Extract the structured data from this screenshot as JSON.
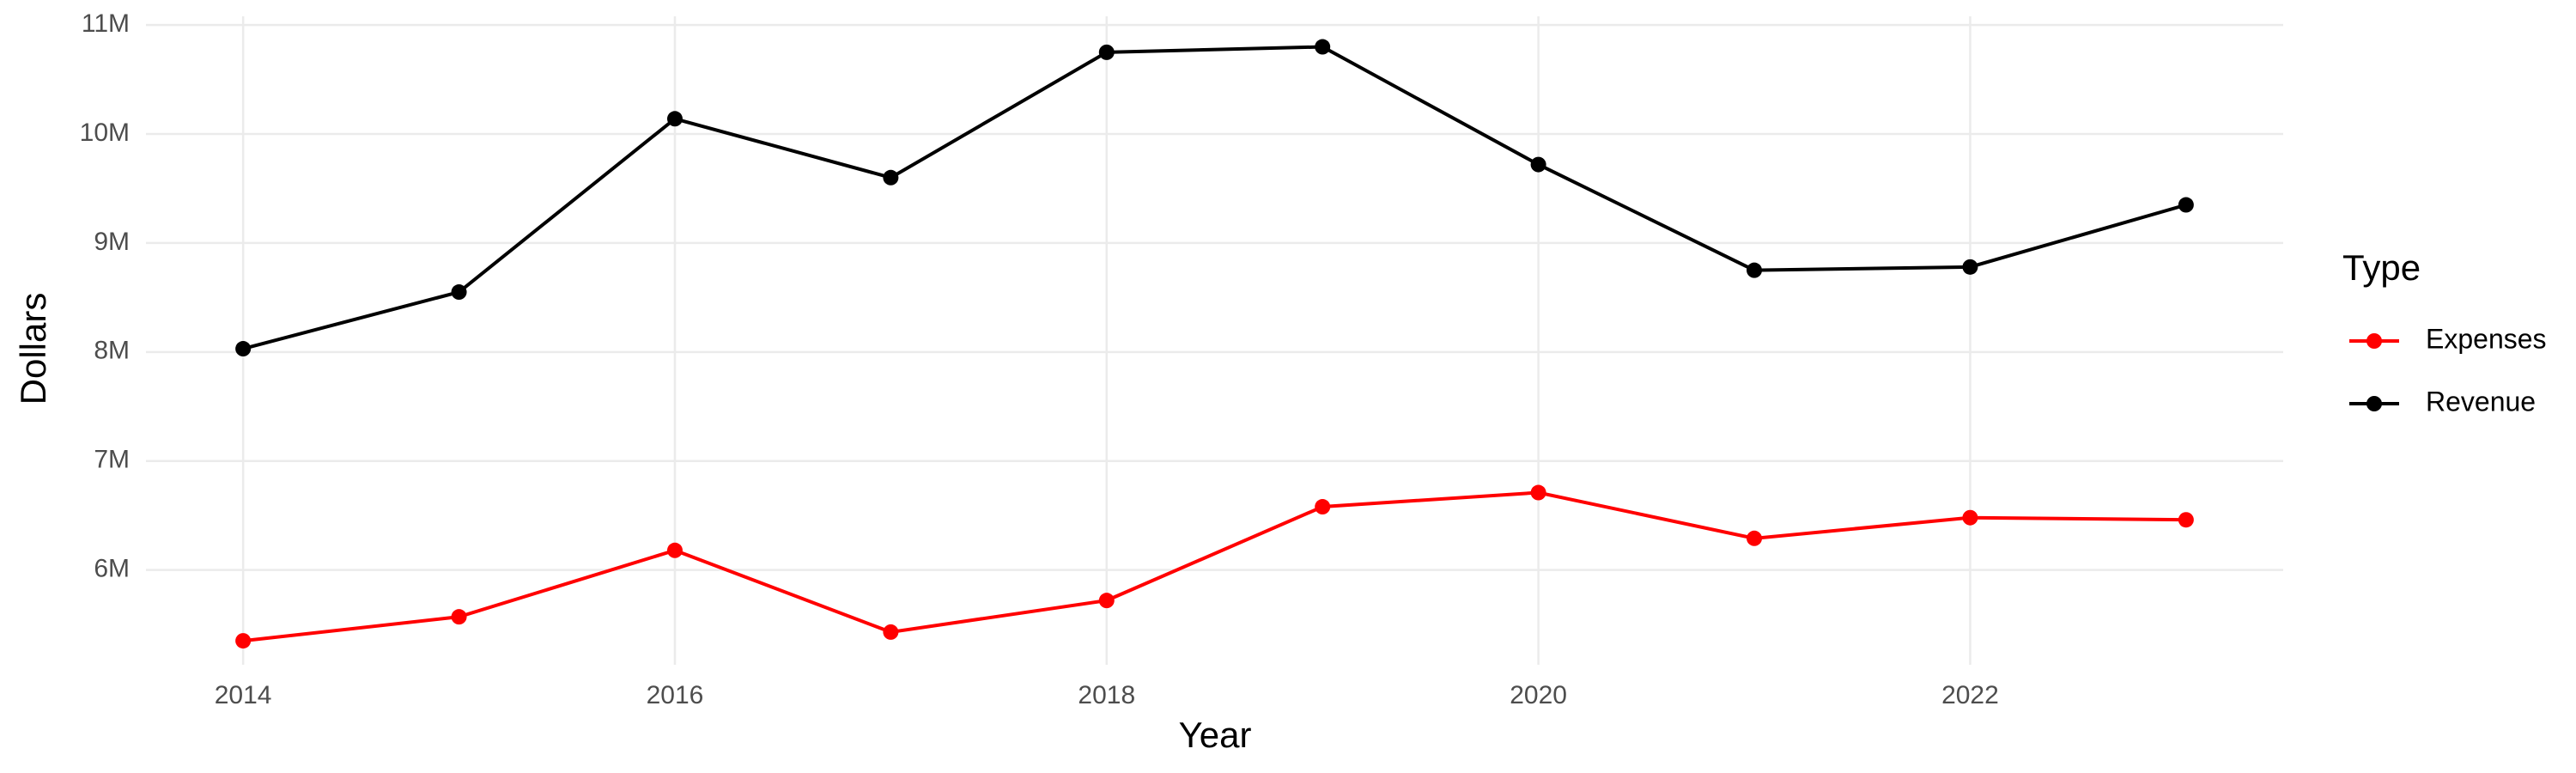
{
  "chart_data": {
    "type": "line",
    "x": [
      2014,
      2015,
      2016,
      2017,
      2018,
      2019,
      2020,
      2021,
      2022,
      2023
    ],
    "series": [
      {
        "name": "Expenses",
        "color": "#ff0000",
        "values": [
          5350000,
          5570000,
          6180000,
          5430000,
          5720000,
          6580000,
          6710000,
          6290000,
          6480000,
          6460000
        ]
      },
      {
        "name": "Revenue",
        "color": "#000000",
        "values": [
          8030000,
          8550000,
          10140000,
          9600000,
          10750000,
          10800000,
          9720000,
          8750000,
          8780000,
          9350000
        ]
      }
    ],
    "x_label": "Year",
    "y_label": "Dollars",
    "legend_title": "Type",
    "legend": "right",
    "grid": true,
    "xlim": [
      2013.55,
      2023.45
    ],
    "xticks": [
      2014,
      2016,
      2018,
      2020,
      2022
    ],
    "ylim": [
      5130000,
      11080000
    ],
    "yticks": [
      {
        "value": 6000000,
        "label": "6M"
      },
      {
        "value": 7000000,
        "label": "7M"
      },
      {
        "value": 8000000,
        "label": "8M"
      },
      {
        "value": 9000000,
        "label": "9M"
      },
      {
        "value": 10000000,
        "label": "10M"
      },
      {
        "value": 11000000,
        "label": "11M"
      }
    ]
  }
}
